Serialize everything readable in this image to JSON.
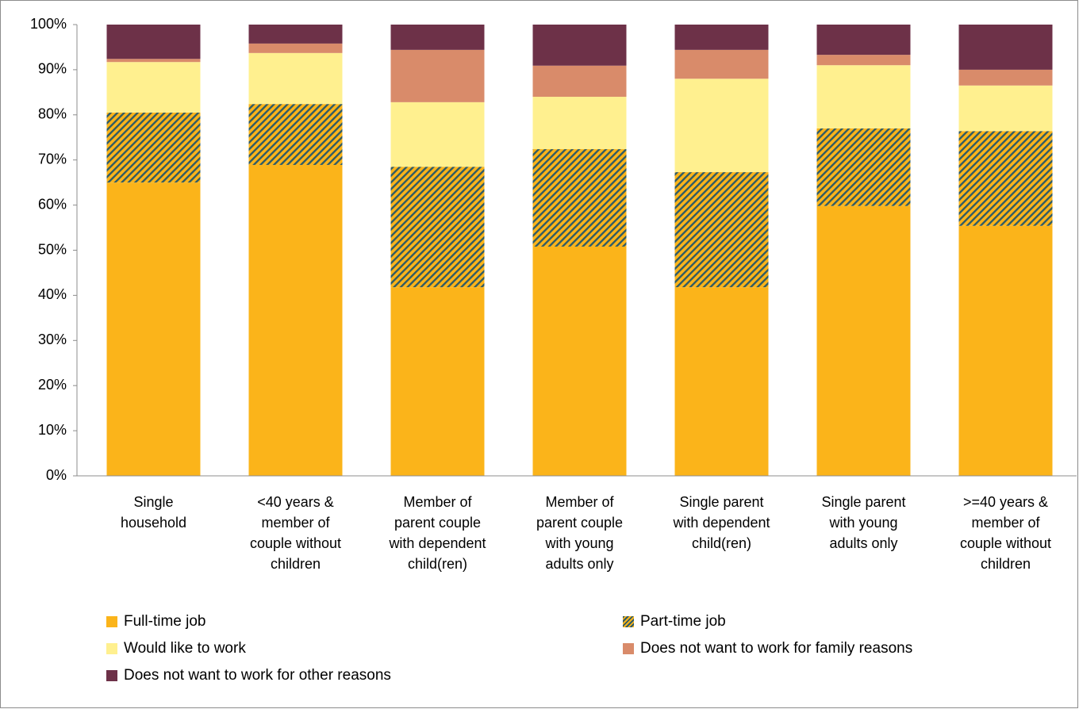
{
  "chart_data": {
    "type": "stacked_bar",
    "categories": [
      "Single\nhousehold",
      "<40 years  &\nmember of\ncouple without\nchildren",
      "Member of\nparent couple\nwith dependent\nchild(ren)",
      "Member of\nparent couple\nwith young\nadults only",
      "Single parent\nwith dependent\nchild(ren)",
      "Single parent\nwith young\nadults only",
      ">=40 years  &\nmember of\ncouple without\nchildren"
    ],
    "series": [
      {
        "name": "Full-time job",
        "color": "#fbb41a",
        "values": [
          65.0,
          68.9,
          41.8,
          50.8,
          41.8,
          59.8,
          55.4
        ]
      },
      {
        "name": "Part-time job",
        "color": "#fbb41a",
        "hatch": "#2f5b66",
        "values": [
          15.5,
          13.5,
          26.7,
          21.6,
          25.5,
          17.2,
          21.0
        ]
      },
      {
        "name": "Would like to work",
        "color": "#fff08f",
        "values": [
          11.2,
          11.3,
          14.3,
          11.6,
          20.7,
          14.0,
          10.1
        ]
      },
      {
        "name": "Does not want to work for family reasons",
        "color": "#d98b6a",
        "values": [
          0.7,
          2.1,
          11.6,
          6.9,
          6.4,
          2.3,
          3.5
        ]
      },
      {
        "name": "Does not want to work for other reasons",
        "color": "#6d3148",
        "values": [
          7.6,
          4.2,
          5.6,
          9.1,
          5.6,
          6.7,
          10.0
        ]
      }
    ],
    "ylim": [
      0,
      100
    ],
    "yticks": [
      {
        "value": 0,
        "label": "0%"
      },
      {
        "value": 10,
        "label": "10%"
      },
      {
        "value": 20,
        "label": "20%"
      },
      {
        "value": 30,
        "label": "30%"
      },
      {
        "value": 40,
        "label": "40%"
      },
      {
        "value": 50,
        "label": "50%"
      },
      {
        "value": 60,
        "label": "60%"
      },
      {
        "value": 70,
        "label": "70%"
      },
      {
        "value": 80,
        "label": "80%"
      },
      {
        "value": 90,
        "label": "90%"
      },
      {
        "value": 100,
        "label": "100%"
      }
    ],
    "grid": false,
    "legend": "bottom"
  }
}
